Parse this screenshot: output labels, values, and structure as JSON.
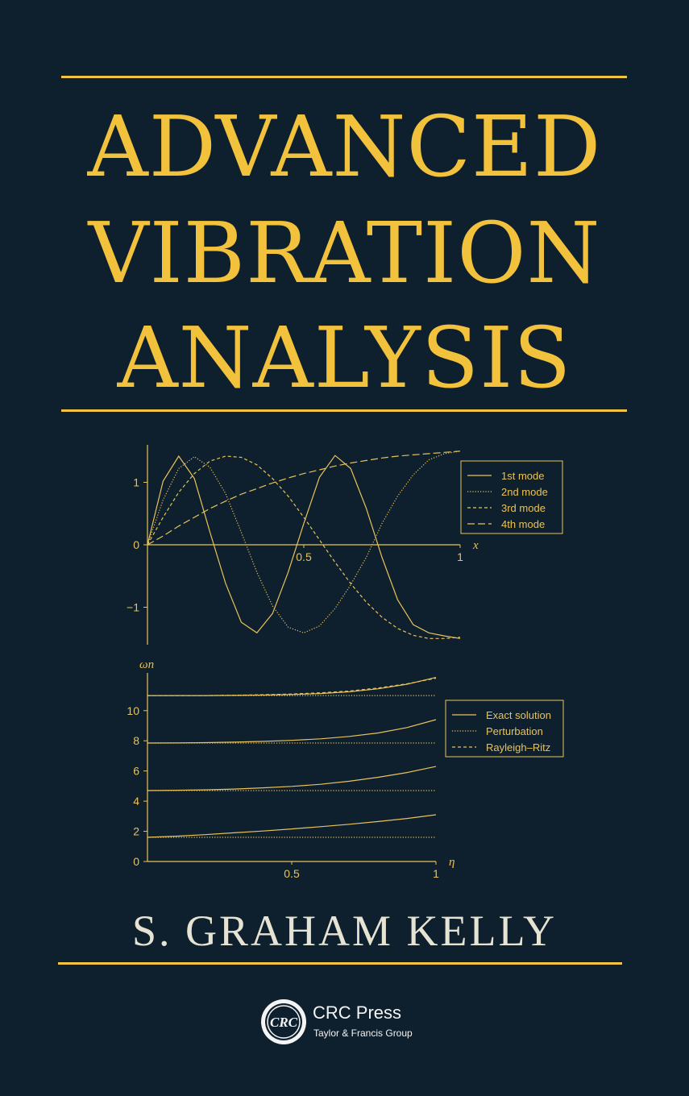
{
  "book": {
    "title_lines": [
      "ADVANCED",
      "VIBRATION",
      "ANALYSIS"
    ],
    "author": "S. GRAHAM KELLY",
    "publisher": {
      "logo_icon": "crc-logo-icon",
      "name": "CRC Press",
      "group": "Taylor & Francis Group"
    }
  },
  "colors": {
    "background": "#0e1f2d",
    "accent": "#f2c43f",
    "chart": "#e9c35a",
    "author": "#e7e3d3"
  },
  "chart_data": [
    {
      "type": "line",
      "xlabel": "x",
      "ylabel": "",
      "xlim": [
        0,
        1
      ],
      "ylim": [
        -1.6,
        1.6
      ],
      "x_ticks": [
        {
          "v": 0.5,
          "label": "0.5"
        },
        {
          "v": 1,
          "label": "1"
        }
      ],
      "y_ticks": [
        {
          "v": 1,
          "label": "1"
        },
        {
          "v": 0,
          "label": "0"
        },
        {
          "v": -1,
          "label": "−1"
        }
      ],
      "legend": "top-right",
      "grid": false,
      "x": [
        0,
        0.05,
        0.1,
        0.15,
        0.2,
        0.25,
        0.3,
        0.35,
        0.4,
        0.45,
        0.5,
        0.55,
        0.6,
        0.65,
        0.7,
        0.75,
        0.8,
        0.85,
        0.9,
        0.95,
        1
      ],
      "series": [
        {
          "name": "1st mode",
          "style": "solid",
          "values": [
            0,
            1.02,
            1.42,
            1.06,
            0.2,
            -0.62,
            -1.24,
            -1.41,
            -1.1,
            -0.44,
            0.34,
            1.08,
            1.43,
            1.22,
            0.58,
            -0.2,
            -0.88,
            -1.28,
            -1.41,
            -1.46,
            -1.5
          ]
        },
        {
          "name": "2nd mode",
          "style": "dotted",
          "values": [
            0,
            0.72,
            1.22,
            1.41,
            1.24,
            0.82,
            0.2,
            -0.44,
            -0.98,
            -1.32,
            -1.41,
            -1.3,
            -1.02,
            -0.64,
            -0.2,
            0.34,
            0.78,
            1.12,
            1.36,
            1.46,
            1.5
          ]
        },
        {
          "name": "3rd mode",
          "style": "dashed",
          "values": [
            0,
            0.44,
            0.84,
            1.14,
            1.34,
            1.42,
            1.4,
            1.28,
            1.06,
            0.78,
            0.44,
            0.08,
            -0.28,
            -0.62,
            -0.92,
            -1.16,
            -1.34,
            -1.45,
            -1.5,
            -1.5,
            -1.48
          ]
        },
        {
          "name": "4th mode",
          "style": "longdash",
          "values": [
            0,
            0.14,
            0.3,
            0.44,
            0.58,
            0.7,
            0.81,
            0.9,
            0.99,
            1.07,
            1.14,
            1.2,
            1.26,
            1.31,
            1.35,
            1.39,
            1.42,
            1.44,
            1.46,
            1.48,
            1.5
          ]
        }
      ]
    },
    {
      "type": "line",
      "xlabel": "η",
      "ylabel": "ωn",
      "xlim": [
        0,
        1
      ],
      "ylim": [
        0,
        12.5
      ],
      "x_ticks": [
        {
          "v": 0.5,
          "label": "0.5"
        },
        {
          "v": 1,
          "label": "1"
        }
      ],
      "y_ticks": [
        {
          "v": 0,
          "label": "0"
        },
        {
          "v": 2,
          "label": "2"
        },
        {
          "v": 4,
          "label": "4"
        },
        {
          "v": 6,
          "label": "6"
        },
        {
          "v": 8,
          "label": "8"
        },
        {
          "v": 10,
          "label": "10"
        }
      ],
      "legend": "top-right",
      "grid": false,
      "x": [
        0,
        0.1,
        0.2,
        0.3,
        0.4,
        0.5,
        0.6,
        0.7,
        0.8,
        0.9,
        1
      ],
      "series": [
        {
          "name": "Exact solution",
          "style": "solid",
          "groups": [
            [
              1.6,
              1.68,
              1.78,
              1.9,
              2.02,
              2.16,
              2.31,
              2.47,
              2.65,
              2.85,
              3.1
            ],
            [
              4.7,
              4.72,
              4.75,
              4.8,
              4.88,
              4.98,
              5.12,
              5.32,
              5.58,
              5.9,
              6.3
            ],
            [
              7.85,
              7.86,
              7.88,
              7.91,
              7.96,
              8.03,
              8.13,
              8.29,
              8.52,
              8.88,
              9.4
            ],
            [
              11.0,
              11.0,
              11.0,
              11.01,
              11.03,
              11.07,
              11.13,
              11.25,
              11.45,
              11.75,
              12.2
            ]
          ]
        },
        {
          "name": "Perturbation",
          "style": "dotted",
          "groups": [
            [
              1.6,
              1.6,
              1.6,
              1.6,
              1.6,
              1.6,
              1.6,
              1.6,
              1.6,
              1.6,
              1.6
            ],
            [
              4.7,
              4.7,
              4.7,
              4.7,
              4.7,
              4.7,
              4.7,
              4.7,
              4.7,
              4.7,
              4.7
            ],
            [
              7.85,
              7.85,
              7.85,
              7.85,
              7.85,
              7.85,
              7.85,
              7.85,
              7.85,
              7.85,
              7.85
            ],
            [
              11.0,
              11.0,
              11.0,
              11.0,
              11.0,
              11.0,
              11.0,
              11.0,
              11.0,
              11.0,
              11.0
            ]
          ]
        },
        {
          "name": "Rayleigh–Ritz",
          "style": "dashed",
          "groups": [
            [
              11.0,
              11.0,
              11.0,
              11.02,
              11.05,
              11.1,
              11.18,
              11.3,
              11.5,
              11.78,
              12.15
            ]
          ]
        }
      ]
    }
  ]
}
